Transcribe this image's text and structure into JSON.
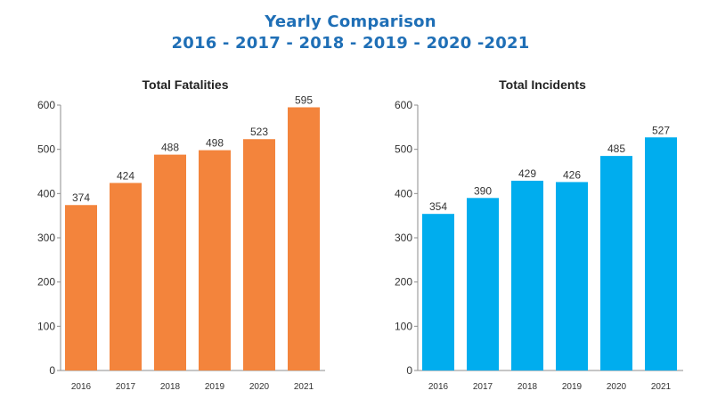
{
  "header": {
    "title_line1": "Yearly Comparison",
    "title_line2": "2016 - 2017 - 2018 - 2019 - 2020 -2021",
    "color": "#1f6fb6"
  },
  "chart_data": [
    {
      "type": "bar",
      "title": "Total Fatalities",
      "categories": [
        "2016",
        "2017",
        "2018",
        "2019",
        "2020",
        "2021"
      ],
      "values": [
        374,
        424,
        488,
        498,
        523,
        595
      ],
      "data_labels": [
        "374",
        "424",
        "488",
        "498",
        "523",
        "595"
      ],
      "yticks": [
        "0",
        "100",
        "200",
        "300",
        "400",
        "500",
        "600"
      ],
      "ylim": [
        0,
        600
      ],
      "xlabel": "",
      "ylabel": "",
      "color": "#f3843c",
      "grid": false
    },
    {
      "type": "bar",
      "title": "Total Incidents",
      "categories": [
        "2016",
        "2017",
        "2018",
        "2019",
        "2020",
        "2021"
      ],
      "values": [
        354,
        390,
        429,
        426,
        485,
        527
      ],
      "data_labels": [
        "354",
        "390",
        "429",
        "426",
        "485",
        "527"
      ],
      "yticks": [
        "0",
        "100",
        "200",
        "300",
        "400",
        "500",
        "600"
      ],
      "ylim": [
        0,
        600
      ],
      "xlabel": "",
      "ylabel": "",
      "color": "#00adee",
      "grid": false
    }
  ]
}
